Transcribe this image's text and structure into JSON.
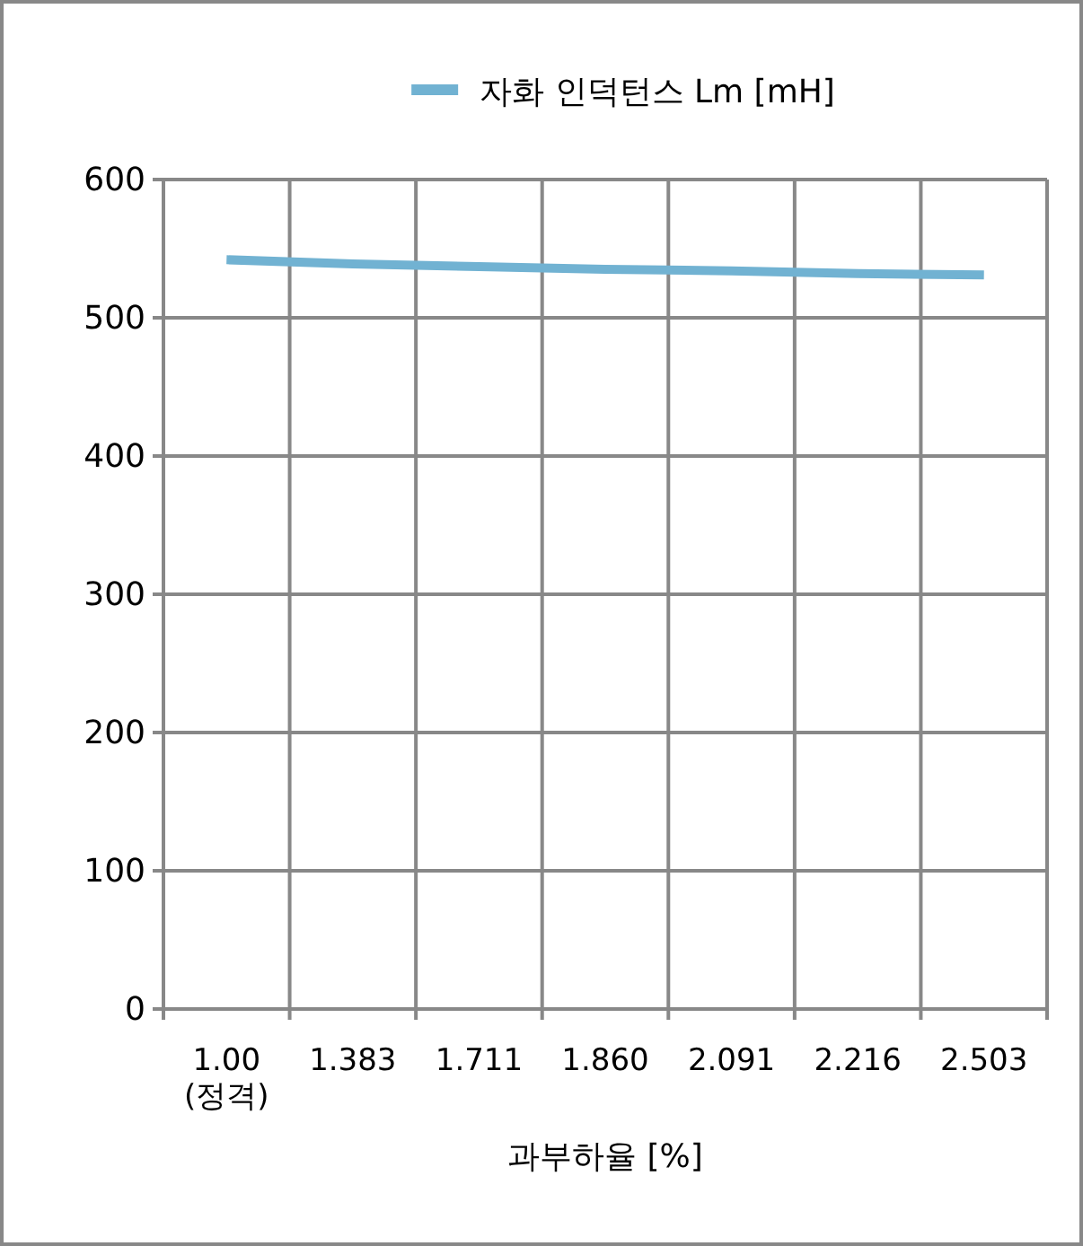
{
  "chart_data": {
    "type": "line",
    "xlabel": "과부하율 [%]",
    "categories": [
      "1.00 (정격)",
      "1.383",
      "1.711",
      "1.860",
      "2.091",
      "2.216",
      "2.503"
    ],
    "series": [
      {
        "name": "자화 인덕턴스 Lm [mH]",
        "color": "#71b2d2",
        "values": [
          542,
          539,
          537,
          535,
          534,
          532,
          531
        ]
      }
    ],
    "ylim": [
      0,
      600
    ],
    "yticks": [
      0,
      100,
      200,
      300,
      400,
      500,
      600
    ],
    "grid": true,
    "legend": "top",
    "marker": "none"
  }
}
